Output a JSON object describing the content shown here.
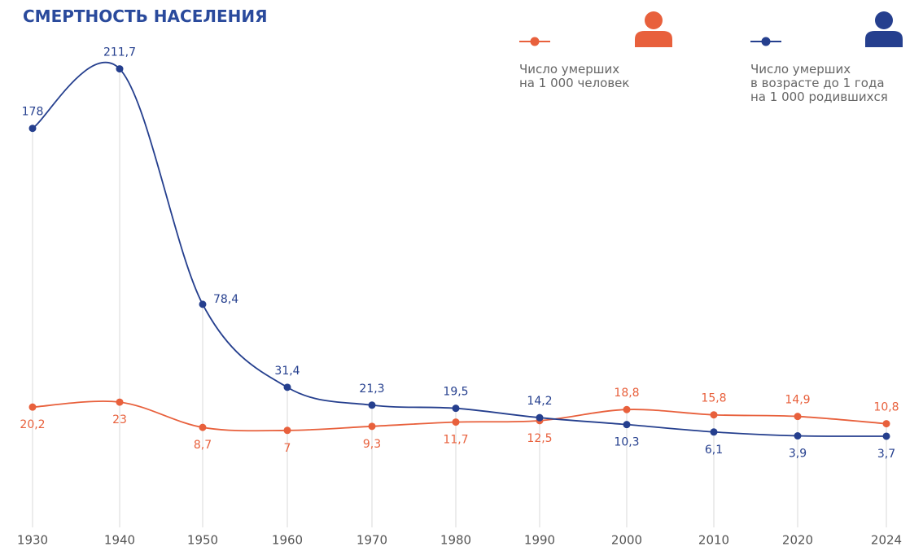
{
  "chart_data": {
    "type": "line",
    "title": "СМЕРТНОСТЬ НАСЕЛЕНИЯ",
    "categories": [
      "1930",
      "1940",
      "1950",
      "1960",
      "1970",
      "1980",
      "1990",
      "2000",
      "2010",
      "2020",
      "2024"
    ],
    "series": [
      {
        "name": "Число умерших\nна 1 000 человек",
        "color": "#e8603c",
        "values": [
          20.2,
          23,
          8.7,
          7,
          9.3,
          11.7,
          12.5,
          18.8,
          15.8,
          14.9,
          10.8
        ],
        "value_labels": [
          "20,2",
          "23",
          "8,7",
          "7",
          "9,3",
          "11,7",
          "12,5",
          "18,8",
          "15,8",
          "14,9",
          "10,8"
        ]
      },
      {
        "name": "Число умерших\nв возрасте до 1 года\nна 1 000 родившихся",
        "color": "#253f8e",
        "values": [
          178,
          211.7,
          78.4,
          31.4,
          21.3,
          19.5,
          14.2,
          10.3,
          6.1,
          3.9,
          3.7
        ],
        "value_labels": [
          "178",
          "211,7",
          "78,4",
          "31,4",
          "21,3",
          "19,5",
          "14,2",
          "10,3",
          "6,1",
          "3,9",
          "3,7"
        ]
      }
    ]
  }
}
